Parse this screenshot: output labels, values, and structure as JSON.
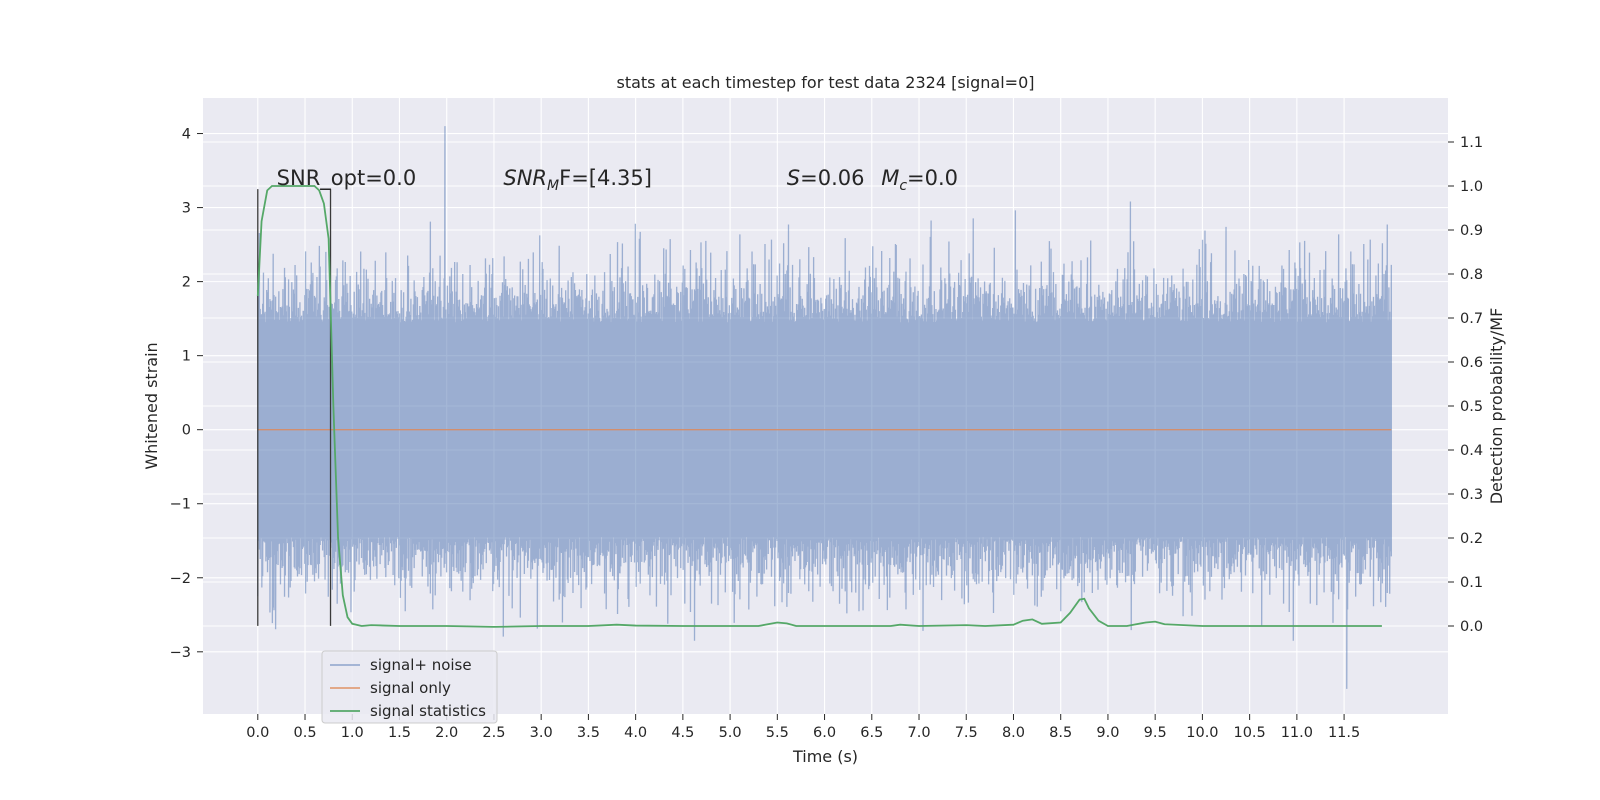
{
  "chart_data": {
    "type": "line",
    "title": "stats at each timestep for test data 2324 [signal=0]",
    "xlabel": "Time (s)",
    "ylabel_left": "Whitened strain",
    "ylabel_right": "Detection probability/MF",
    "xlim": [
      -0.58,
      12.6
    ],
    "ylim_left": [
      -3.84,
      4.48
    ],
    "ylim_right": [
      -0.2,
      1.2
    ],
    "x_ticks": [
      0.0,
      0.5,
      1.0,
      1.5,
      2.0,
      2.5,
      3.0,
      3.5,
      4.0,
      4.5,
      5.0,
      5.5,
      6.0,
      6.5,
      7.0,
      7.5,
      8.0,
      8.5,
      9.0,
      9.5,
      10.0,
      10.5,
      11.0,
      11.5
    ],
    "x_tick_labels": [
      "0.0",
      "0.5",
      "1.0",
      "1.5",
      "2.0",
      "2.5",
      "3.0",
      "3.5",
      "4.0",
      "4.5",
      "5.0",
      "5.5",
      "6.0",
      "6.5",
      "7.0",
      "7.5",
      "8.0",
      "8.5",
      "9.0",
      "9.5",
      "10.0",
      "10.5",
      "11.0",
      "11.5"
    ],
    "y_left_ticks": [
      -3,
      -2,
      -1,
      0,
      1,
      2,
      3,
      4
    ],
    "y_left_tick_labels": [
      "−3",
      "−2",
      "−1",
      "0",
      "1",
      "2",
      "3",
      "4"
    ],
    "y_right_ticks": [
      0.0,
      0.1,
      0.2,
      0.3,
      0.4,
      0.5,
      0.6,
      0.7,
      0.8,
      0.9,
      1.0,
      1.1
    ],
    "y_right_tick_labels": [
      "0.0",
      "0.1",
      "0.2",
      "0.3",
      "0.4",
      "0.5",
      "0.6",
      "0.7",
      "0.8",
      "0.9",
      "1.0",
      "1.1"
    ],
    "grid": true,
    "legend_placement": "lower-left",
    "annotations": [
      {
        "text": "SNR_opt=0.0",
        "x": 0.2,
        "y_right": 1.0
      },
      {
        "text": "SNR",
        "sub": "M",
        "suffix": "F=[4.35]",
        "x": 2.6,
        "y_right": 1.0
      },
      {
        "text": "S",
        "suffix": "=0.06",
        "x": 5.6,
        "y_right": 1.0
      },
      {
        "text": "M",
        "sub": "c",
        "suffix": "=0.0",
        "x": 6.6,
        "y_right": 1.0
      }
    ],
    "markers": {
      "vertical_lines_x": [
        0.0,
        0.77
      ],
      "vertical_line_top_y": 3.25,
      "vertical_line_bottom_y": -2.65
    },
    "series": [
      {
        "name": "signal+ noise",
        "axis": "left",
        "color": "#4c72b0",
        "alpha": 0.5,
        "t_start": 0.0,
        "t_end": 12.0,
        "samples": 1400,
        "typical_envelope": [
          -1.5,
          1.5
        ],
        "extremes": {
          "max": 4.1,
          "min": -3.5
        }
      },
      {
        "name": "signal only",
        "axis": "left",
        "color": "#dd8452",
        "x": [
          0.0,
          12.0
        ],
        "y": [
          0.0,
          0.0
        ]
      },
      {
        "name": "signal statistics",
        "axis": "right",
        "color": "#55a868",
        "x": [
          0.0,
          0.04,
          0.1,
          0.15,
          0.2,
          0.3,
          0.4,
          0.5,
          0.6,
          0.65,
          0.7,
          0.75,
          0.8,
          0.85,
          0.9,
          0.95,
          1.0,
          1.1,
          1.2,
          1.5,
          2.0,
          2.5,
          3.0,
          3.5,
          3.8,
          4.0,
          4.5,
          5.0,
          5.3,
          5.5,
          5.6,
          5.7,
          6.0,
          6.5,
          6.7,
          6.8,
          7.0,
          7.5,
          7.7,
          8.0,
          8.1,
          8.2,
          8.3,
          8.5,
          8.6,
          8.7,
          8.75,
          8.8,
          8.9,
          9.0,
          9.2,
          9.4,
          9.5,
          9.6,
          10.0,
          10.5,
          11.0,
          11.5,
          11.9
        ],
        "y": [
          0.75,
          0.92,
          0.99,
          1.0,
          1.0,
          1.0,
          1.0,
          1.0,
          1.0,
          0.99,
          0.96,
          0.88,
          0.5,
          0.2,
          0.07,
          0.02,
          0.005,
          0.0,
          0.002,
          0.0,
          0.0,
          -0.002,
          0.0,
          0.0,
          0.003,
          0.001,
          0.0,
          0.0,
          0.0,
          0.008,
          0.006,
          0.0,
          0.0,
          0.0,
          0.0,
          0.003,
          0.0,
          0.002,
          0.0,
          0.003,
          0.012,
          0.015,
          0.005,
          0.008,
          0.03,
          0.06,
          0.062,
          0.04,
          0.012,
          0.0,
          0.0,
          0.008,
          0.01,
          0.004,
          0.0,
          0.0,
          0.0,
          0.0,
          0.0
        ]
      }
    ]
  }
}
